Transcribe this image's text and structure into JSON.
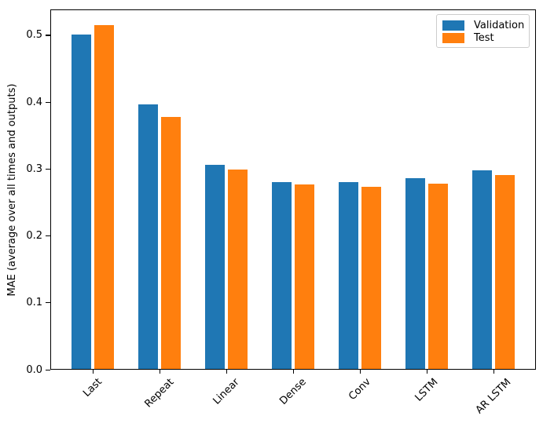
{
  "figure": {
    "background": "#ffffff",
    "axes_edge_color": "#000000",
    "legend_border_color": "#cccccc"
  },
  "chart_data": {
    "type": "bar",
    "title": "",
    "xlabel": "",
    "ylabel": "MAE (average over all times and outputs)",
    "categories": [
      "Last",
      "Repeat",
      "Linear",
      "Dense",
      "Conv",
      "LSTM",
      "AR LSTM"
    ],
    "series": [
      {
        "name": "Validation",
        "color": "#1f77b4",
        "values": [
          0.501,
          0.396,
          0.306,
          0.28,
          0.28,
          0.286,
          0.297
        ]
      },
      {
        "name": "Test",
        "color": "#ff7f0e",
        "values": [
          0.515,
          0.377,
          0.299,
          0.276,
          0.273,
          0.277,
          0.291
        ]
      }
    ],
    "ylim": [
      0.0,
      0.538
    ],
    "yticks": [
      0.0,
      0.1,
      0.2,
      0.3,
      0.4,
      0.5
    ],
    "ytick_format_decimals": 1,
    "x_tick_rotation": 45,
    "grid": false,
    "legend_position": "upper right",
    "bar_width_fraction": 0.3,
    "bar_offset_fraction": 0.17
  }
}
